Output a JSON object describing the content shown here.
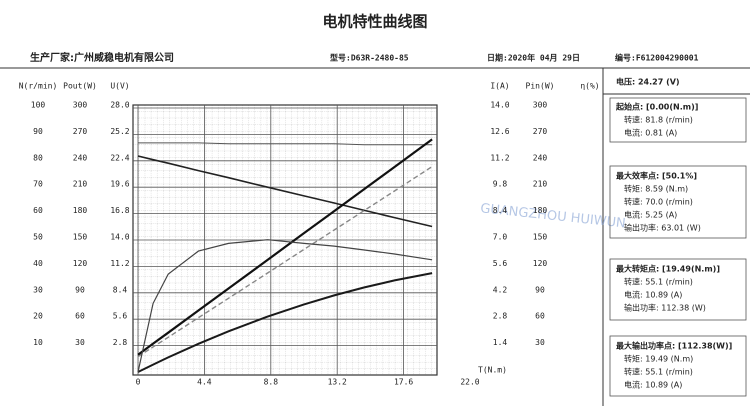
{
  "header": {
    "title": "电机特性曲线图",
    "manufacturer": "生产厂家:广州威稳电机有限公司",
    "model": "型号:D63R-2480-85",
    "date": "日期:2020年 04月 29日",
    "serial": "编号:F612004290001"
  },
  "watermark": "GUANGZHOU HUIWUN",
  "panel": {
    "voltage": "电压:  24.27 (V)",
    "sections": [
      {
        "title": "起始点: [0.00(N.m)]",
        "lines": [
          "转速: 81.8 (r/min)",
          "电流: 0.81 (A)"
        ]
      },
      {
        "title": "最大效率点: [50.1%]",
        "lines": [
          "转矩: 8.59 (N.m)",
          "转速: 70.0 (r/min)",
          "电流: 5.25 (A)",
          "输出功率: 63.01 (W)"
        ]
      },
      {
        "title": "最大转矩点: [19.49(N.m)]",
        "lines": [
          "转速: 55.1 (r/min)",
          "电流: 10.89 (A)",
          "输出功率: 112.38 (W)"
        ]
      },
      {
        "title": "最大输出功率点: [112.38(W)]",
        "lines": [
          "转矩: 19.49 (N.m)",
          "转速: 55.1 (r/min)",
          "电流: 10.89 (A)"
        ]
      }
    ]
  },
  "chart_data": {
    "type": "line",
    "x_label": "T(N.m)",
    "grid": true,
    "xlim": [
      0,
      22
    ],
    "xticks": [
      0,
      4.4,
      8.8,
      13.2,
      17.6,
      {
        "value": 22,
        "label": "22.0"
      }
    ],
    "axes": [
      {
        "label": "N(r/min)",
        "side": "left",
        "lim": [
          0,
          100
        ],
        "ticks": [
          10,
          20,
          30,
          40,
          50,
          60,
          70,
          80,
          90,
          100
        ]
      },
      {
        "label": "Pout(W)",
        "side": "left",
        "lim": [
          0,
          300
        ],
        "ticks": [
          30,
          60,
          90,
          120,
          150,
          180,
          210,
          240,
          270,
          300
        ]
      },
      {
        "label": "U(V)",
        "side": "left",
        "lim": [
          0,
          28
        ],
        "ticks": [
          2.8,
          5.6,
          8.4,
          11.2,
          {
            "value": 14,
            "label": "14.0"
          },
          16.8,
          19.6,
          22.4,
          25.2,
          {
            "value": 28,
            "label": "28.0"
          }
        ]
      },
      {
        "label": "I(A)",
        "side": "right",
        "lim": [
          0,
          14
        ],
        "ticks": [
          1.4,
          2.8,
          4.2,
          5.6,
          {
            "value": 7,
            "label": "7.0"
          },
          8.4,
          9.8,
          11.2,
          12.6,
          {
            "value": 14,
            "label": "14.0"
          }
        ]
      },
      {
        "label": "Pin(W)",
        "side": "right",
        "lim": [
          0,
          300
        ],
        "ticks": [
          30,
          60,
          90,
          120,
          150,
          180,
          210,
          240,
          270,
          300
        ]
      },
      {
        "label": "η(%)",
        "side": "right",
        "lim": [
          0,
          100
        ],
        "ticks": []
      }
    ],
    "x": [
      0,
      1,
      2,
      4,
      6,
      8.59,
      11,
      13,
      15,
      17,
      19.49
    ],
    "series": [
      {
        "axis": 2,
        "color": "#555555",
        "width": 1,
        "values": [
          24.3,
          24.3,
          24.3,
          24.3,
          24.2,
          24.2,
          24.2,
          24.2,
          24.1,
          24.1,
          24.1
        ]
      },
      {
        "axis": 0,
        "color": "#222222",
        "width": 1.6,
        "values": [
          81.8,
          80.4,
          79.1,
          76.3,
          73.6,
          70.0,
          66.7,
          64.0,
          61.2,
          58.5,
          55.1
        ]
      },
      {
        "axis": 3,
        "color": "#888888",
        "width": 1.4,
        "dashed": true,
        "values": [
          0.81,
          1.33,
          1.84,
          2.88,
          3.91,
          5.25,
          6.5,
          7.53,
          8.57,
          9.6,
          10.89
        ]
      },
      {
        "axis": 4,
        "color": "#111111",
        "width": 2.2,
        "values": [
          19.7,
          32.3,
          44.7,
          69.9,
          94.9,
          127.4,
          157.8,
          182.8,
          208.0,
          233.0,
          264.3
        ]
      },
      {
        "axis": 1,
        "color": "#1a1a1a",
        "width": 2,
        "values": [
          0,
          8.4,
          16.6,
          32.0,
          46.2,
          63.0,
          76.8,
          87.1,
          96.1,
          104.1,
          112.4
        ]
      },
      {
        "axis": 5,
        "color": "#444444",
        "width": 1.2,
        "values": [
          0,
          26.0,
          37.1,
          45.8,
          48.7,
          50.1,
          48.7,
          47.7,
          46.2,
          44.7,
          42.5
        ]
      }
    ]
  }
}
